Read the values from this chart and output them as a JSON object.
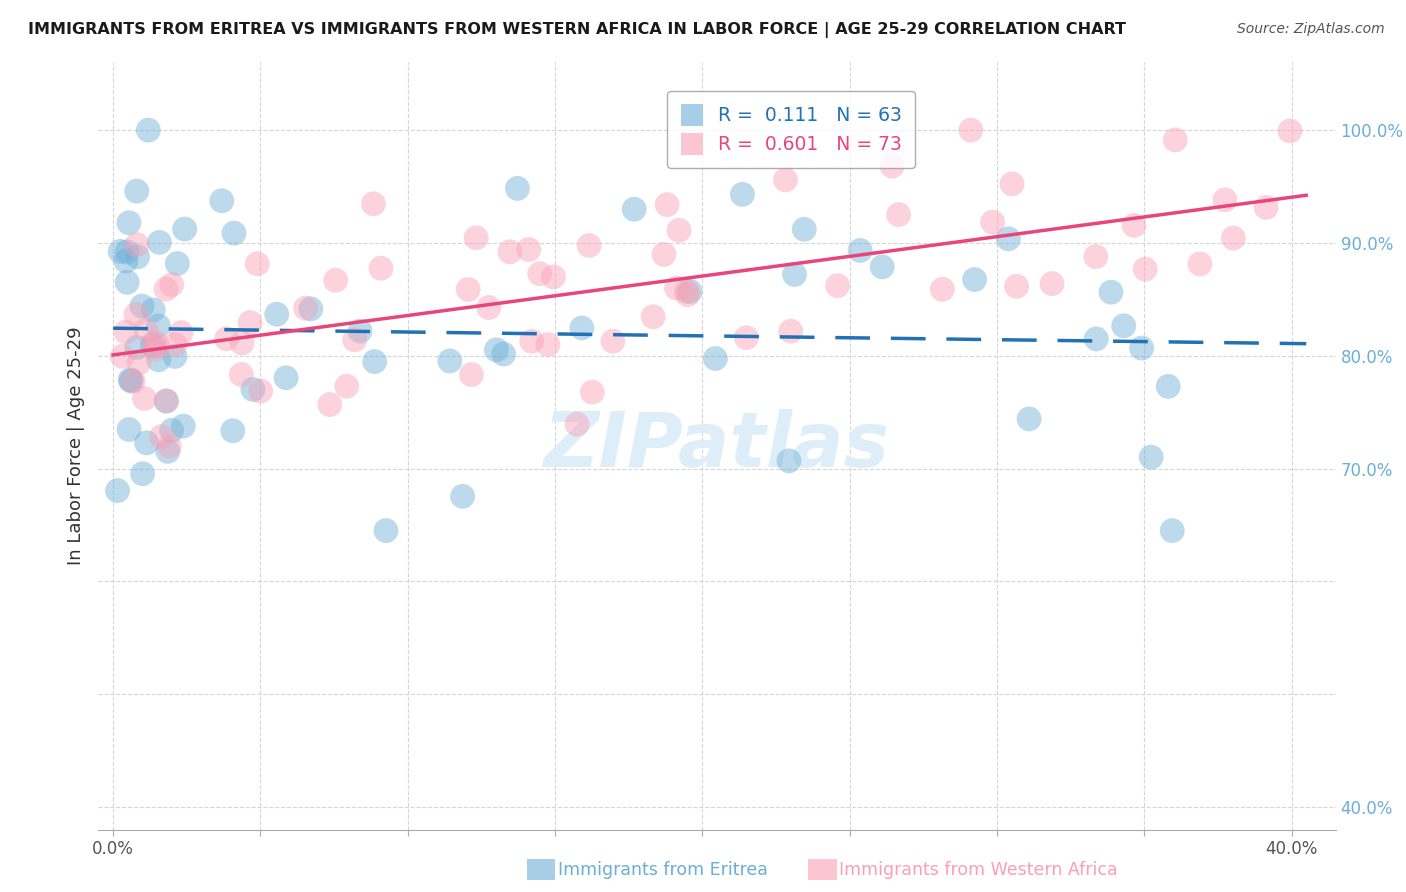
{
  "title": "IMMIGRANTS FROM ERITREA VS IMMIGRANTS FROM WESTERN AFRICA IN LABOR FORCE | AGE 25-29 CORRELATION CHART",
  "source": "Source: ZipAtlas.com",
  "ylabel": "In Labor Force | Age 25-29",
  "blue_R": 0.111,
  "blue_N": 63,
  "pink_R": 0.601,
  "pink_N": 73,
  "blue_color": "#6baed6",
  "pink_color": "#fa9fb5",
  "blue_line_color": "#2171b5",
  "pink_line_color": "#e8457a",
  "watermark_color": "#ddeef8",
  "grid_color": "#cccccc",
  "title_color": "#1a1a1a",
  "source_color": "#555555",
  "tick_color": "#555555",
  "ylabel_color": "#333333",
  "legend_label_blue": "Immigrants from Eritrea",
  "legend_label_pink": "Immigrants from Western Africa"
}
